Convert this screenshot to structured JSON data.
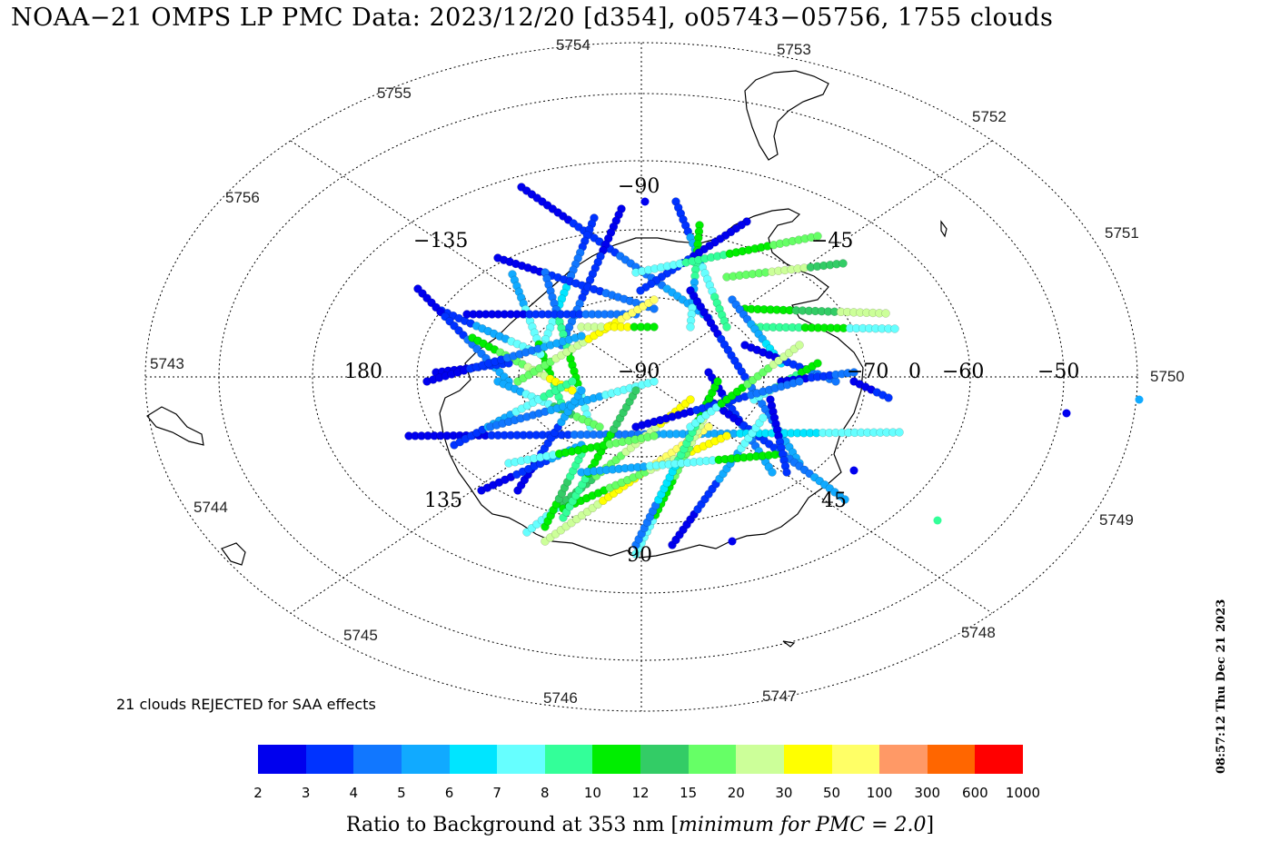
{
  "title": "NOAA−21 OMPS LP PMC Data: 2023/12/20 [d354], o05743−05756, 1755 clouds",
  "orbit_labels": [
    "5743",
    "5744",
    "5745",
    "5746",
    "5747",
    "5748",
    "5749",
    "5750",
    "5751",
    "5752",
    "5753",
    "5754",
    "5755",
    "5756"
  ],
  "longitude_labels": {
    "lon_-90_top": "−90",
    "lon_-135": "−135",
    "lon_-45": "−45",
    "lon_180": "180",
    "lon_0": "0",
    "lon_135": "135",
    "lon_45": "45",
    "lon_90_bottom": "90"
  },
  "latitude_labels": {
    "lat_-90": "−90",
    "lat_-70": "−70",
    "lat_-60": "−60",
    "lat_-50": "−50"
  },
  "rejected_note": "21 clouds REJECTED for SAA effects",
  "timestamp": "08:57:12 Thu Dec 21 2023",
  "colorbar": {
    "colors": [
      "#0000ee",
      "#0033ff",
      "#1177ff",
      "#11aaff",
      "#00e5ff",
      "#66ffff",
      "#33ff99",
      "#00ee00",
      "#33cc66",
      "#66ff66",
      "#ccff99",
      "#ffff00",
      "#ffff66",
      "#ff9966",
      "#ff6600",
      "#ff0000"
    ],
    "tick_labels": [
      "2",
      "3",
      "4",
      "5",
      "6",
      "7",
      "8",
      "10",
      "12",
      "15",
      "20",
      "30",
      "50",
      "100",
      "300",
      "600",
      "1000"
    ],
    "caption_prefix": "Ratio to Background at 353 nm [",
    "caption_italic": "minimum for PMC = 2.0",
    "caption_suffix": "]"
  },
  "colors": {
    "background": "#ffffff",
    "grid": "#000000",
    "coast": "#000000"
  }
}
